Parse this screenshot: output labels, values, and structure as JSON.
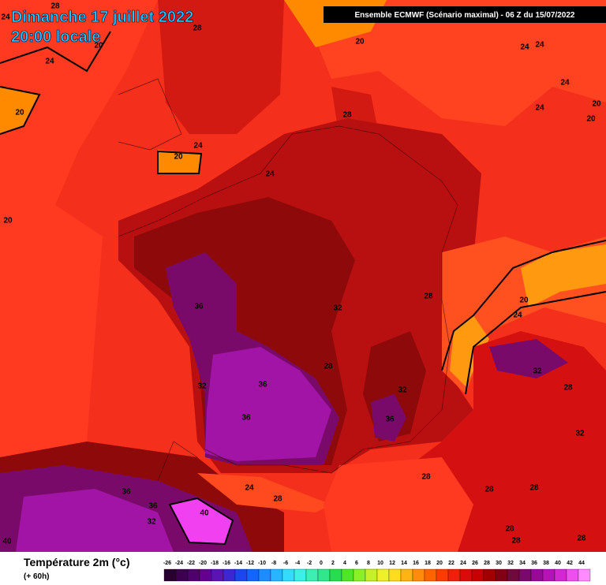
{
  "header": {
    "date": "Dimanche 17 juillet 2022",
    "time": "20:00 locale",
    "model": "Ensemble ECMWF  (Scénario maximal) - 06 Z du 15/07/2022"
  },
  "contour_labels": [
    28,
    24,
    28,
    20,
    20,
    24,
    24,
    24,
    24,
    24,
    20,
    20,
    20,
    28,
    24,
    20,
    24,
    20,
    36,
    32,
    28,
    20,
    24,
    28,
    32,
    36,
    32,
    32,
    28,
    36,
    36,
    32,
    28,
    24,
    28,
    36,
    28,
    28,
    36,
    40,
    32,
    28,
    28,
    28,
    40
  ],
  "legend": {
    "title": "Température 2m (°c)",
    "lead": "(+ 60h)",
    "ticks": [
      -26,
      -24,
      -22,
      -20,
      -18,
      -16,
      -14,
      -12,
      -10,
      -8,
      -6,
      -4,
      -2,
      0,
      2,
      4,
      6,
      8,
      10,
      12,
      14,
      16,
      18,
      20,
      22,
      24,
      26,
      28,
      30,
      32,
      34,
      36,
      38,
      40,
      42,
      44
    ],
    "colors": [
      "#2a0030",
      "#3c0050",
      "#50006c",
      "#640090",
      "#5a14b4",
      "#3c28d2",
      "#1e46f0",
      "#1464ff",
      "#1e8cff",
      "#28b4ff",
      "#32dcff",
      "#3cf0e6",
      "#3cf0b4",
      "#32e68c",
      "#28dc50",
      "#50e628",
      "#8cf028",
      "#c8f028",
      "#f0f028",
      "#ffdc1e",
      "#ffb414",
      "#ff8c0a",
      "#ff6400",
      "#ff3c00",
      "#f01e0a",
      "#dc0a0a",
      "#c80000",
      "#a00000",
      "#820014",
      "#6e0a3c",
      "#7a0a6a",
      "#960a96",
      "#b414b4",
      "#d228d2",
      "#ee50ee",
      "#ff8cff"
    ]
  }
}
